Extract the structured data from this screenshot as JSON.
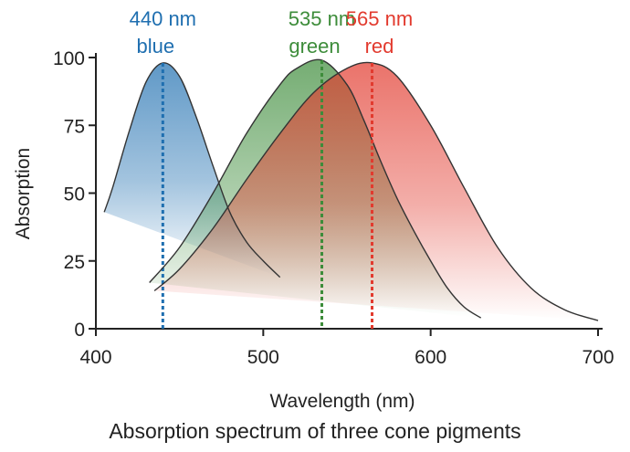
{
  "chart_data": {
    "type": "line",
    "caption": "Absorption spectrum of three cone pigments",
    "xlabel": "Wavelength (nm)",
    "ylabel": "Absorption",
    "xlim": [
      400,
      700
    ],
    "xticks": [
      400,
      500,
      600,
      700
    ],
    "ylim": [
      0,
      100
    ],
    "yticks": [
      0,
      25,
      50,
      75,
      100
    ],
    "series": [
      {
        "name": "blue",
        "peak_label": "440 nm",
        "peak": 440,
        "color": "#1f6fb0",
        "x": [
          405,
          410,
          420,
          430,
          440,
          450,
          460,
          470,
          480,
          490,
          500,
          510
        ],
        "values": [
          43,
          52,
          73,
          91,
          98,
          93,
          78,
          60,
          43,
          32,
          25,
          19
        ]
      },
      {
        "name": "green",
        "peak_label": "535 nm",
        "peak": 535,
        "color": "#3d8c3a",
        "x": [
          432,
          450,
          470,
          490,
          510,
          520,
          535,
          550,
          560,
          570,
          580,
          590,
          600,
          610,
          620,
          630
        ],
        "values": [
          17,
          30,
          50,
          72,
          90,
          96,
          99,
          90,
          77,
          62,
          48,
          36,
          25,
          15,
          8,
          4
        ]
      },
      {
        "name": "red",
        "peak_label": "565 nm",
        "peak": 565,
        "color": "#e23a2e",
        "x": [
          435,
          450,
          470,
          490,
          510,
          530,
          550,
          565,
          580,
          600,
          620,
          640,
          660,
          680,
          700
        ],
        "values": [
          14,
          22,
          37,
          55,
          72,
          87,
          96,
          98,
          93,
          75,
          52,
          30,
          15,
          7,
          3
        ]
      }
    ]
  }
}
